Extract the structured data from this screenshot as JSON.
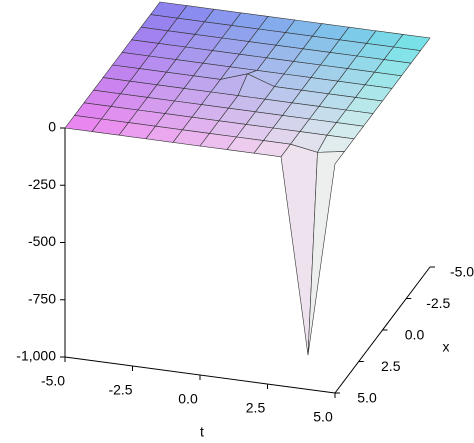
{
  "chart_data": {
    "type": "surface",
    "t": [
      -5,
      -4,
      -3,
      -2,
      -1,
      0,
      1,
      2,
      3,
      4,
      5
    ],
    "x": [
      -5,
      -4,
      -3,
      -2,
      -1,
      0,
      1,
      2,
      3,
      4,
      5
    ],
    "z": [
      [
        0,
        0,
        0,
        0,
        0,
        0,
        0,
        0,
        0,
        0,
        0
      ],
      [
        0,
        0,
        0,
        0,
        0,
        0,
        0,
        0,
        0,
        0,
        0
      ],
      [
        0,
        0,
        0,
        0,
        0,
        0,
        0,
        0,
        0,
        0,
        0
      ],
      [
        0,
        0,
        0,
        0,
        0,
        0,
        0,
        0,
        0,
        0,
        0
      ],
      [
        0,
        0,
        0,
        0,
        0,
        0,
        0,
        0,
        0,
        0,
        0
      ],
      [
        0,
        0,
        0,
        0,
        0,
        40,
        0,
        0,
        0,
        0,
        0
      ],
      [
        0,
        0,
        0,
        0,
        0,
        0,
        0,
        0,
        0,
        0,
        0
      ],
      [
        0,
        0,
        0,
        0,
        0,
        0,
        0,
        0,
        0,
        0,
        0
      ],
      [
        0,
        0,
        0,
        0,
        0,
        0,
        0,
        0,
        0,
        0,
        0
      ],
      [
        0,
        0,
        0,
        0,
        0,
        0,
        0,
        0,
        0,
        -20,
        0
      ],
      [
        0,
        0,
        0,
        0,
        0,
        0,
        0,
        0,
        0,
        -850,
        0
      ]
    ],
    "tlim": [
      -5,
      5
    ],
    "xlim": [
      -5,
      5
    ],
    "zlim": [
      -1000,
      0
    ],
    "zticks": [
      0,
      -250,
      -500,
      -750,
      {
        "value": -1000,
        "label": "-1,000"
      }
    ],
    "tticks": [
      {
        "value": -5,
        "label": "-5.0"
      },
      {
        "value": -2.5,
        "label": "-2.5"
      },
      {
        "value": 0,
        "label": "0.0"
      },
      {
        "value": 2.5,
        "label": "2.5"
      },
      {
        "value": 5,
        "label": "5.0"
      }
    ],
    "xticks": [
      {
        "value": -5,
        "label": "-5.0"
      },
      {
        "value": -2.5,
        "label": "-2.5"
      },
      {
        "value": 0,
        "label": "0.0"
      },
      {
        "value": 2.5,
        "label": "2.5"
      },
      {
        "value": 5,
        "label": "5.0"
      }
    ],
    "t_label": "t",
    "x_label": "x",
    "colormap": [
      "#ef80ef",
      "#8a7cf0",
      "#6fe6e6",
      "#f4f4ee"
    ]
  }
}
